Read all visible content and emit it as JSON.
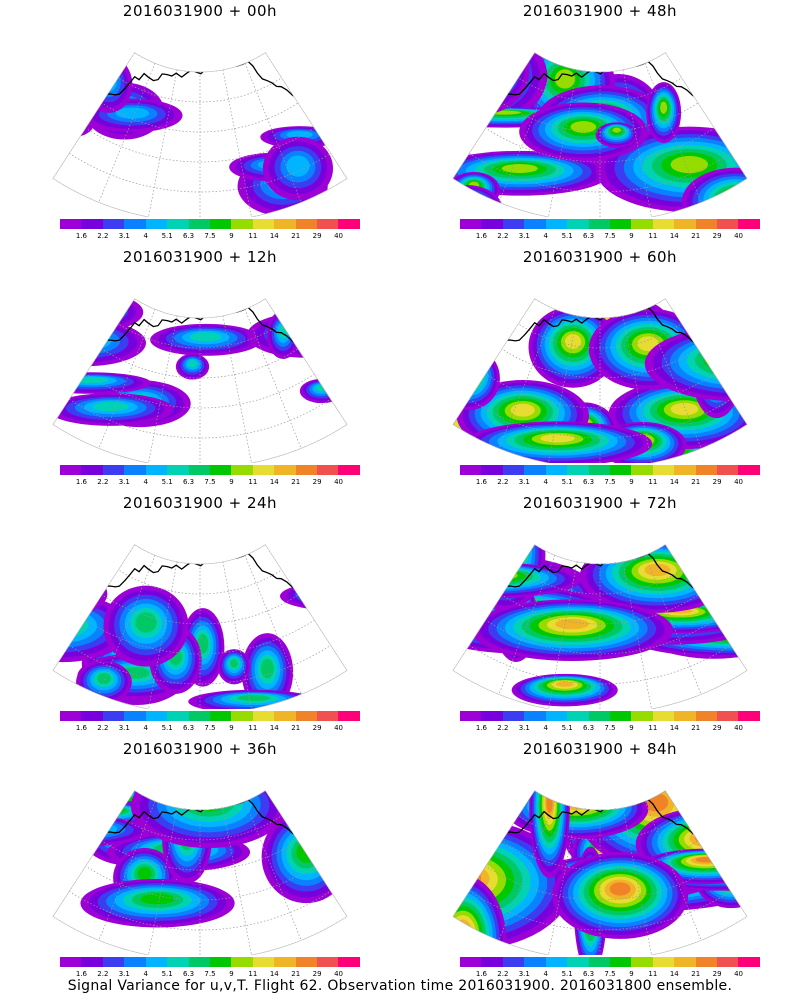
{
  "panels": [
    {
      "title": "2016031900 + 00h",
      "lead_hours": 0,
      "intensity": 0.15
    },
    {
      "title": "2016031900 + 48h",
      "lead_hours": 48,
      "intensity": 0.55
    },
    {
      "title": "2016031900 + 12h",
      "lead_hours": 12,
      "intensity": 0.25
    },
    {
      "title": "2016031900 + 60h",
      "lead_hours": 60,
      "intensity": 0.65
    },
    {
      "title": "2016031900 + 24h",
      "lead_hours": 24,
      "intensity": 0.35
    },
    {
      "title": "2016031900 + 72h",
      "lead_hours": 72,
      "intensity": 0.75
    },
    {
      "title": "2016031900 + 36h",
      "lead_hours": 36,
      "intensity": 0.45
    },
    {
      "title": "2016031900 + 84h",
      "lead_hours": 84,
      "intensity": 0.9
    }
  ],
  "colorbar": {
    "labels": [
      "1.6",
      "2.2",
      "3.1",
      "4",
      "5.1",
      "6.3",
      "7.5",
      "9",
      "11",
      "14",
      "21",
      "29",
      "40"
    ],
    "colors": [
      "#9c00d6",
      "#7800dc",
      "#3c3cf0",
      "#0a82ff",
      "#00b4ff",
      "#00d2b4",
      "#00c864",
      "#00c800",
      "#96dc00",
      "#e6dc32",
      "#f0b428",
      "#f08228",
      "#f05050",
      "#ff0078"
    ]
  },
  "caption": "Signal Variance for u,v,T. Flight 62. Observation time 2016031900. 2016031800 ensemble."
}
